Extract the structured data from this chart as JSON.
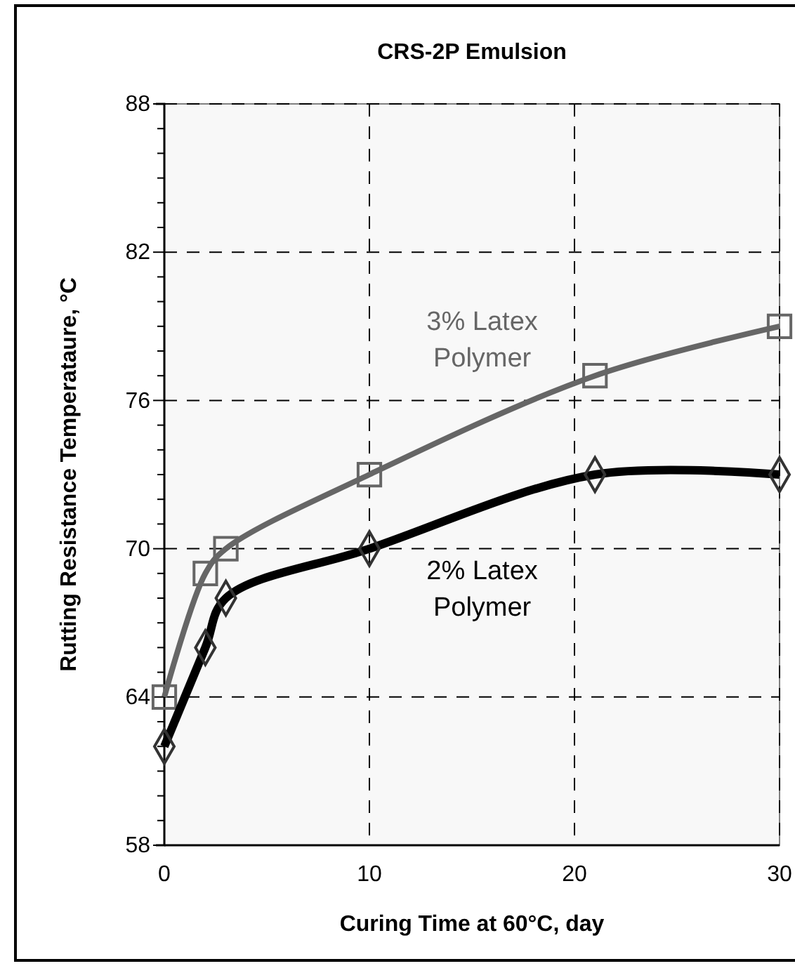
{
  "chart_data": {
    "type": "line",
    "title": "CRS-2P Emulsion",
    "xlabel": "Curing Time at 60°C, day",
    "ylabel": "Rutting Resistance Temperataure, °C",
    "x": [
      0,
      2,
      3,
      10,
      21,
      30
    ],
    "series": [
      {
        "name": "3% Latex Polymer",
        "color": "#666666",
        "marker": "square",
        "values": [
          64,
          69,
          70,
          73,
          77,
          79
        ]
      },
      {
        "name": "2% Latex Polymer",
        "color": "#000000",
        "marker": "diamond",
        "values": [
          62,
          66,
          68,
          70,
          73,
          73
        ]
      }
    ],
    "xlim": [
      0,
      30
    ],
    "xticks": [
      0,
      10,
      20,
      30
    ],
    "ylim": [
      58,
      88
    ],
    "yticks": [
      58,
      {
        "value": 59,
        "label": null
      },
      {
        "value": 60,
        "label": null
      },
      {
        "value": 61,
        "label": null
      },
      {
        "value": 62,
        "label": null
      },
      {
        "value": 63,
        "label": null
      },
      64,
      {
        "value": 65,
        "label": null
      },
      {
        "value": 66,
        "label": null
      },
      {
        "value": 67,
        "label": null
      },
      {
        "value": 68,
        "label": null
      },
      {
        "value": 69,
        "label": null
      },
      70,
      {
        "value": 71,
        "label": null
      },
      {
        "value": 72,
        "label": null
      },
      {
        "value": 73,
        "label": null
      },
      {
        "value": 74,
        "label": null
      },
      {
        "value": 75,
        "label": null
      },
      76,
      {
        "value": 77,
        "label": null
      },
      {
        "value": 78,
        "label": null
      },
      {
        "value": 79,
        "label": null
      },
      {
        "value": 80,
        "label": null
      },
      {
        "value": 81,
        "label": null
      },
      82,
      {
        "value": 83,
        "label": null
      },
      {
        "value": 84,
        "label": null
      },
      {
        "value": 85,
        "label": null
      },
      {
        "value": 86,
        "label": null
      },
      {
        "value": 87,
        "label": null
      },
      88
    ],
    "grid": true,
    "line_style": "solid"
  }
}
